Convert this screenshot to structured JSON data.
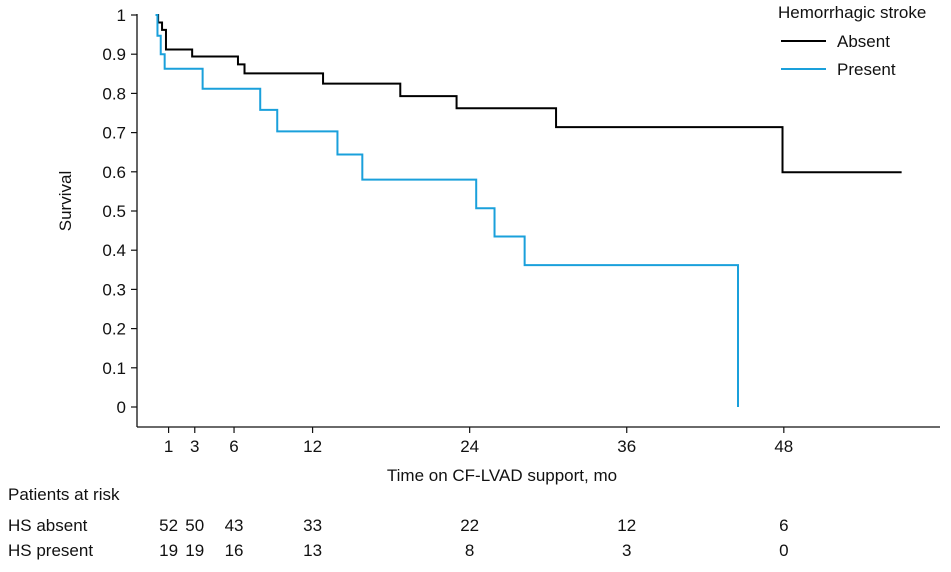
{
  "chart_data": {
    "type": "line",
    "title": "",
    "xlabel": "Time on CF-LVAD support, mo",
    "ylabel": "Survival",
    "xlim": [
      -1,
      57
    ],
    "ylim": [
      0,
      1
    ],
    "x_ticks": [
      1,
      3,
      6,
      12,
      24,
      36,
      48
    ],
    "y_ticks": [
      0,
      0.1,
      0.2,
      0.3,
      0.4,
      0.5,
      0.6,
      0.7,
      0.8,
      0.9,
      1
    ],
    "y_tick_labels": [
      "0",
      "0.1",
      "0.2",
      "0.3",
      "0.4",
      "0.5",
      "0.6",
      "0.7",
      "0.8",
      "0.9",
      "1"
    ],
    "grid": false,
    "legend": {
      "title": "Hemorrhagic stroke",
      "placement": "top-right"
    },
    "series": [
      {
        "name": "Absent",
        "color": "#000000",
        "steps": [
          [
            0,
            1.0
          ],
          [
            0.2,
            0.981
          ],
          [
            0.5,
            0.962
          ],
          [
            0.8,
            0.912
          ],
          [
            2.8,
            0.894
          ],
          [
            6.3,
            0.874
          ],
          [
            6.8,
            0.851
          ],
          [
            12.8,
            0.825
          ],
          [
            18.7,
            0.793
          ],
          [
            23.0,
            0.762
          ],
          [
            30.6,
            0.714
          ],
          [
            47.9,
            0.599
          ],
          [
            57.0,
            0.599
          ]
        ]
      },
      {
        "name": "Present",
        "color": "#1aa0db",
        "steps": [
          [
            0,
            1.0
          ],
          [
            0.15,
            0.947
          ],
          [
            0.4,
            0.9
          ],
          [
            0.7,
            0.863
          ],
          [
            3.6,
            0.812
          ],
          [
            8.0,
            0.758
          ],
          [
            9.3,
            0.703
          ],
          [
            13.9,
            0.644
          ],
          [
            15.8,
            0.58
          ],
          [
            24.5,
            0.507
          ],
          [
            25.9,
            0.435
          ],
          [
            28.2,
            0.362
          ],
          [
            44.5,
            0.362
          ],
          [
            44.5,
            0.0
          ]
        ]
      }
    ],
    "risk_table": {
      "title": "Patients at risk",
      "timepoints": [
        1,
        3,
        6,
        12,
        24,
        36,
        48
      ],
      "rows": [
        {
          "label": "HS absent",
          "counts": [
            "52",
            "50",
            "43",
            "33",
            "22",
            "12",
            "6"
          ]
        },
        {
          "label": "HS present",
          "counts": [
            "19",
            "19",
            "16",
            "13",
            "8",
            "3",
            "0"
          ]
        }
      ]
    }
  }
}
